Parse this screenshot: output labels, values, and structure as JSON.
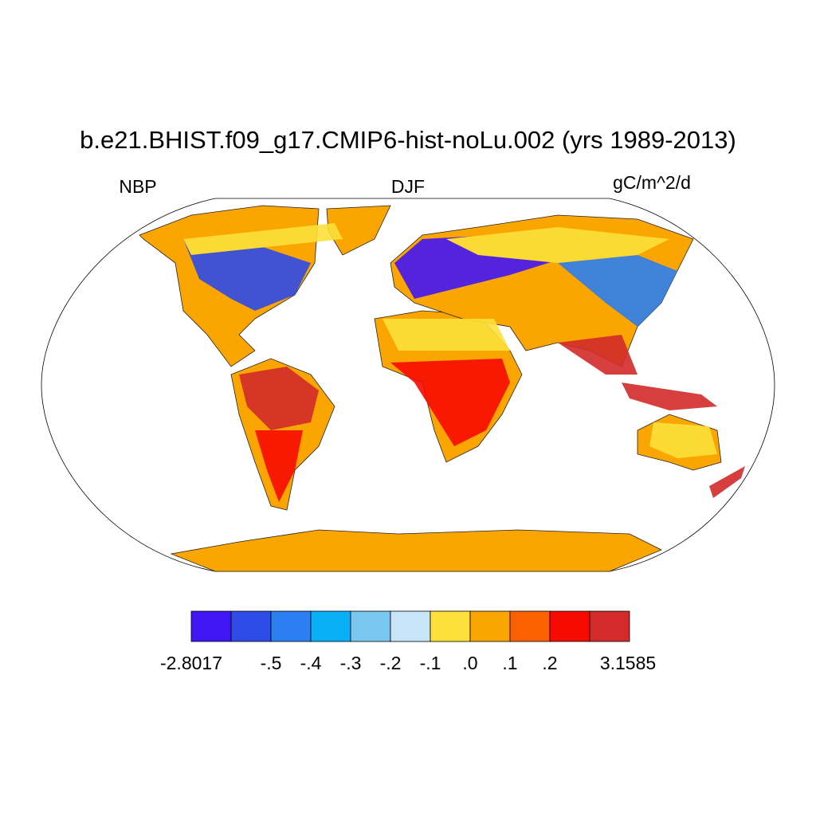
{
  "header": {
    "title": "b.e21.BHIST.f09_g17.CMIP6-hist-noLu.002 (yrs 1989-2013)",
    "left_label": "NBP",
    "center_label": "DJF",
    "right_label": "gC/m^2/d"
  },
  "colorbar": {
    "colors": [
      "#4216f4",
      "#2e4be8",
      "#2c7ff0",
      "#0ab0f7",
      "#79c6ef",
      "#c8e4f7",
      "#fde03a",
      "#fba500",
      "#fb6100",
      "#f70a00",
      "#d32b2b"
    ],
    "labels": [
      "-2.8017",
      "-.5",
      "-.4",
      "-.3",
      "-.2",
      "-.1",
      ".0",
      ".1",
      ".2",
      "3.1585"
    ]
  }
}
